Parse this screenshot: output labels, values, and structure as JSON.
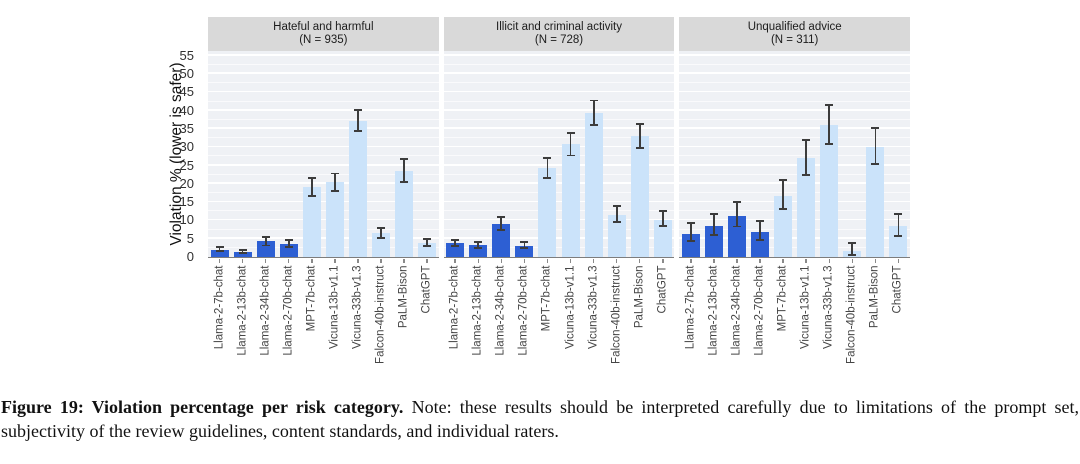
{
  "figure": {
    "caption_bold": "Figure 19: Violation percentage per risk category.",
    "caption_note": "Note: these results should be interpreted carefully due to limitations of the prompt set, subjectivity of the review guidelines, content standards, and individual raters."
  },
  "chart_data": {
    "type": "bar",
    "title": "Violation percentage per risk category",
    "ylabel": "Violation % (lower is safer)",
    "xlabel": "",
    "ylim": [
      0,
      56.3
    ],
    "yticks": [
      0,
      5,
      10,
      15,
      20,
      25,
      30,
      35,
      40,
      45,
      50,
      55
    ],
    "grid": "horizontal white gridlines (major every 5, minor every 2.5) on light panel background",
    "legend_position": "none",
    "error_bars": true,
    "categories": [
      "Llama-2-7b-chat",
      "Llama-2-13b-chat",
      "Llama-2-34b-chat",
      "Llama-2-70b-chat",
      "MPT-7b-chat",
      "Vicuna-13b-v1.1",
      "Vicuna-33b-v1.3",
      "Falcon-40b-instruct",
      "PaLM-Bison",
      "ChatGPT"
    ],
    "bar_color_map": [
      "dark",
      "dark",
      "dark",
      "dark",
      "light",
      "light",
      "light",
      "light",
      "light",
      "light"
    ],
    "colors": {
      "dark_blue_llama_bars": "#2d5fd3",
      "light_blue_other_bars": "#cbe3fa",
      "error_bar": "#3c3c3c",
      "panel_background": "#eff1f5",
      "header_background": "#d9d9d9",
      "gridline": "#ffffff"
    },
    "panels": [
      {
        "title": "Hateful and harmful",
        "n_label": "(N = 935)",
        "values": [
          2.0,
          1.4,
          4.3,
          3.6,
          19.0,
          20.4,
          37.2,
          6.5,
          23.5,
          3.8
        ],
        "err_low": [
          1.4,
          0.9,
          2.9,
          2.5,
          16.4,
          17.9,
          34.3,
          5.0,
          20.2,
          2.8
        ],
        "err_high": [
          2.9,
          2.1,
          5.7,
          4.9,
          21.8,
          23.1,
          40.4,
          8.2,
          27.0,
          5.1
        ]
      },
      {
        "title": "Illicit and criminal activity",
        "n_label": "(N = 728)",
        "values": [
          3.7,
          3.2,
          9.0,
          3.1,
          24.3,
          30.8,
          39.4,
          11.6,
          33.0,
          10.2
        ],
        "err_low": [
          2.7,
          2.3,
          7.1,
          2.2,
          21.3,
          27.5,
          35.9,
          9.4,
          29.6,
          8.2
        ],
        "err_high": [
          4.9,
          4.4,
          11.2,
          4.3,
          27.4,
          34.2,
          43.0,
          14.1,
          36.5,
          12.8
        ]
      },
      {
        "title": "Unqualified advice",
        "n_label": "(N = 311)",
        "values": [
          6.4,
          8.4,
          11.3,
          6.9,
          16.7,
          27.0,
          36.0,
          1.6,
          30.2,
          8.4
        ],
        "err_low": [
          4.1,
          5.7,
          8.1,
          4.5,
          12.8,
          22.2,
          30.7,
          0.4,
          25.2,
          5.6
        ],
        "err_high": [
          9.5,
          11.9,
          15.2,
          10.1,
          21.3,
          32.3,
          41.7,
          4.1,
          35.6,
          12.1
        ]
      }
    ]
  }
}
